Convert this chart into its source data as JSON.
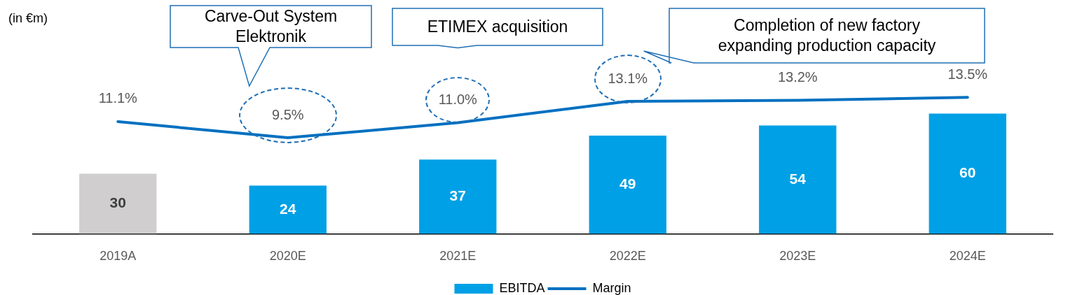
{
  "chart_data": {
    "type": "bar",
    "categories": [
      "2019A",
      "2020E",
      "2021E",
      "2022E",
      "2023E",
      "2024E"
    ],
    "series": [
      {
        "name": "EBITDA",
        "color": "#00a0e6",
        "colors": [
          "#d0cece",
          "#00a0e6",
          "#00a0e6",
          "#00a0e6",
          "#00a0e6",
          "#00a0e6"
        ],
        "values": [
          30,
          24,
          37,
          49,
          54,
          60
        ],
        "value_labels": [
          "30",
          "24",
          "37",
          "49",
          "54",
          "60"
        ]
      },
      {
        "name": "Margin",
        "type": "line",
        "axis": "y2",
        "color": "#0070c0",
        "marker": "none",
        "values": [
          11.1,
          9.5,
          11.0,
          13.1,
          13.2,
          13.5
        ],
        "value_labels": [
          "11.1%",
          "9.5%",
          "11.0%",
          "13.1%",
          "13.2%",
          "13.5%"
        ]
      }
    ],
    "tick_labels": "x",
    "grid": false,
    "legend": "bottom",
    "annotations": [
      "(in €m)",
      "Carve-Out System Elektronik",
      "ETIMEX acquisition",
      "Completion of new factory expanding production capacity"
    ]
  }
}
